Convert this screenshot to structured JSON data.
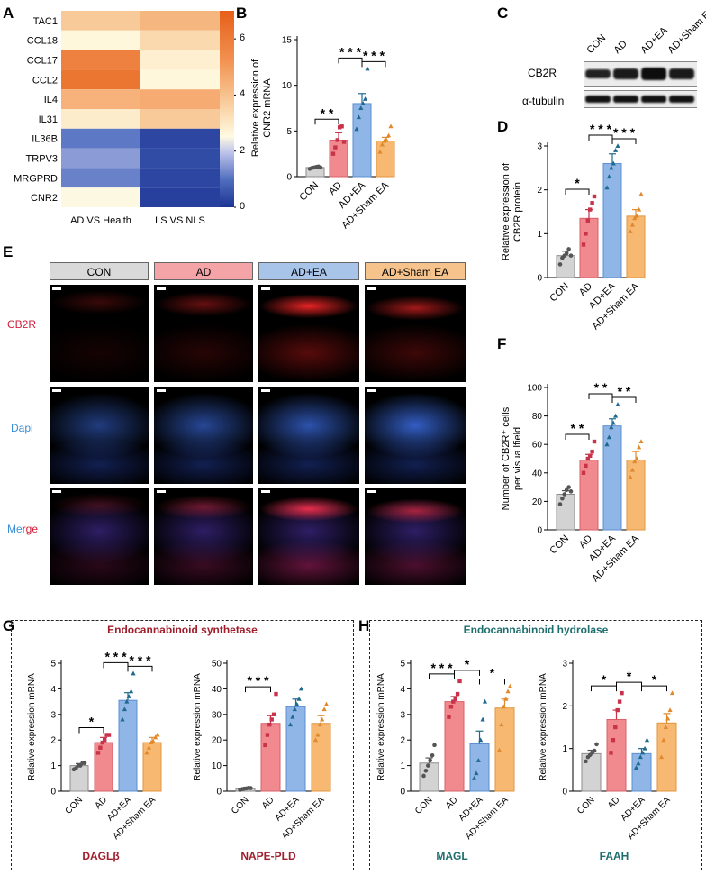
{
  "panels": {
    "a": "A",
    "b": "B",
    "c": "C",
    "d": "D",
    "e": "E",
    "f": "F",
    "g": "G",
    "h": "H"
  },
  "colors": {
    "con": "#d3d3d3",
    "ad": "#f08a8f",
    "ea": "#8fb6e6",
    "sham": "#f7b872",
    "con_pt": "#555555",
    "ad_pt": "#c8324a",
    "ea_pt": "#1f6a8e",
    "sham_pt": "#e08a2e",
    "synth_title": "#a01e2c",
    "hydro_title": "#1f6e6e"
  },
  "heatmap": {
    "rows": [
      "TAC1",
      "CCL18",
      "CCL17",
      "CCL2",
      "IL4",
      "IL31",
      "IL36B",
      "TRPV3",
      "MRGPRD",
      "CNR2"
    ],
    "cols": [
      "AD VS Health",
      "LS VS NLS"
    ],
    "values": [
      [
        3.8,
        4.3
      ],
      [
        2.6,
        3.4
      ],
      [
        5.8,
        2.8
      ],
      [
        6.2,
        2.6
      ],
      [
        4.4,
        4.6
      ],
      [
        2.9,
        3.8
      ],
      [
        1.1,
        0.3
      ],
      [
        1.5,
        0.4
      ],
      [
        1.2,
        0.3
      ],
      [
        2.5,
        0.2
      ]
    ],
    "colorbar_ticks": [
      "6",
      "4",
      "2",
      "0"
    ],
    "range": [
      0,
      7
    ]
  },
  "blot": {
    "lanes": [
      "CON",
      "AD",
      "AD+EA",
      "AD+Sham EA"
    ],
    "rows": [
      "CB2R",
      "α-tubulin"
    ]
  },
  "panel_e": {
    "headers": [
      "CON",
      "AD",
      "AD+EA",
      "AD+Sham EA"
    ],
    "row_labels": [
      "CB2R",
      "Dapi",
      "Merge"
    ],
    "merge_word_a": "Me",
    "merge_word_b": "rge"
  },
  "groups": {
    "synth_title": "Endocannabinoid synthetase",
    "hydro_title": "Endocannabinoid hydrolase"
  },
  "chart_data": [
    {
      "id": "B",
      "type": "bar",
      "categories": [
        "CON",
        "AD",
        "AD+EA",
        "AD+Sham EA"
      ],
      "values": [
        1.0,
        4.0,
        8.0,
        3.9
      ],
      "errors": [
        0.1,
        0.8,
        1.1,
        0.4
      ],
      "ylabel": [
        "Relative expression of",
        "CNR2 mRNA"
      ],
      "ylim": [
        0,
        15
      ],
      "yticks": [
        0,
        5,
        10,
        15
      ],
      "points": [
        [
          0.85,
          0.95,
          1.0,
          1.05,
          1.1,
          1.0
        ],
        [
          2.5,
          3.2,
          4.0,
          5.4,
          5.5,
          3.8
        ],
        [
          5.2,
          6.5,
          7.5,
          8.0,
          8.5,
          11.8
        ],
        [
          2.7,
          3.5,
          3.9,
          4.0,
          4.5,
          5.5
        ]
      ],
      "sig": [
        {
          "a": 0,
          "b": 1,
          "label": "* *"
        },
        {
          "a": 1,
          "b": 2,
          "label": "* * *"
        },
        {
          "a": 2,
          "b": 3,
          "label": "* * *"
        }
      ]
    },
    {
      "id": "D",
      "type": "bar",
      "categories": [
        "CON",
        "AD",
        "AD+EA",
        "AD+Sham EA"
      ],
      "values": [
        0.5,
        1.35,
        2.6,
        1.4
      ],
      "errors": [
        0.1,
        0.2,
        0.22,
        0.15
      ],
      "ylabel": [
        "Relative expression of",
        "CB2R  protein"
      ],
      "ylim": [
        0,
        3
      ],
      "yticks": [
        0,
        1,
        2,
        3
      ],
      "points": [
        [
          0.3,
          0.45,
          0.5,
          0.55,
          0.65,
          0.5
        ],
        [
          0.75,
          1.0,
          1.3,
          1.55,
          1.7,
          1.85
        ],
        [
          2.05,
          2.3,
          2.5,
          2.6,
          2.9,
          3.45
        ],
        [
          1.05,
          1.2,
          1.35,
          1.4,
          1.55,
          1.9
        ]
      ],
      "sig": [
        {
          "a": 0,
          "b": 1,
          "label": "*"
        },
        {
          "a": 1,
          "b": 2,
          "label": "* * *"
        },
        {
          "a": 2,
          "b": 3,
          "label": "* * *"
        }
      ]
    },
    {
      "id": "F",
      "type": "bar",
      "categories": [
        "CON",
        "AD",
        "AD+EA",
        "AD+Sham EA"
      ],
      "values": [
        25,
        49,
        73,
        49
      ],
      "errors": [
        2.5,
        4,
        5,
        6
      ],
      "ylabel": [
        "Number of CB2R⁺ cells",
        "per visua lfield"
      ],
      "ylim": [
        0,
        100
      ],
      "yticks": [
        0,
        20,
        40,
        60,
        80,
        100
      ],
      "points": [
        [
          18,
          22,
          25,
          28,
          30,
          27
        ],
        [
          40,
          45,
          50,
          52,
          55,
          62
        ],
        [
          60,
          65,
          72,
          75,
          80,
          88
        ],
        [
          37,
          42,
          48,
          50,
          58,
          62
        ]
      ],
      "sig": [
        {
          "a": 0,
          "b": 1,
          "label": "* *"
        },
        {
          "a": 1,
          "b": 2,
          "label": "* *"
        },
        {
          "a": 2,
          "b": 3,
          "label": "* *"
        }
      ]
    },
    {
      "id": "G1",
      "type": "bar",
      "name": "DAGLβ",
      "categories": [
        "CON",
        "AD",
        "AD+EA",
        "AD+Sham EA"
      ],
      "values": [
        1.0,
        1.9,
        3.55,
        1.9
      ],
      "errors": [
        0.08,
        0.2,
        0.3,
        0.2
      ],
      "ylabel": [
        "Relative expression mRNA"
      ],
      "ylim": [
        0,
        5
      ],
      "yticks": [
        0,
        1,
        2,
        3,
        4,
        5
      ],
      "points": [
        [
          0.85,
          0.9,
          1.0,
          1.0,
          1.1,
          1.1
        ],
        [
          1.5,
          1.7,
          1.9,
          2.0,
          2.2,
          2.2
        ],
        [
          2.8,
          3.2,
          3.5,
          3.7,
          3.9,
          4.6
        ],
        [
          1.5,
          1.7,
          1.9,
          1.95,
          2.1,
          2.2
        ]
      ],
      "sig": [
        {
          "a": 0,
          "b": 1,
          "label": "*"
        },
        {
          "a": 1,
          "b": 2,
          "label": "* * *"
        },
        {
          "a": 2,
          "b": 3,
          "label": "* * *"
        }
      ]
    },
    {
      "id": "G2",
      "type": "bar",
      "name": "NAPE-PLD",
      "categories": [
        "CON",
        "AD",
        "AD+EA",
        "AD+Sham EA"
      ],
      "values": [
        1.0,
        26.5,
        33,
        26.5
      ],
      "errors": [
        0.3,
        3,
        3,
        3
      ],
      "ylabel": [
        "Relative expression mRNA"
      ],
      "ylim": [
        0,
        50
      ],
      "yticks": [
        0,
        10,
        20,
        30,
        40,
        50
      ],
      "points": [
        [
          0.5,
          0.8,
          1.0,
          1.1,
          1.3,
          1.2
        ],
        [
          18,
          22,
          26,
          28,
          30,
          38
        ],
        [
          26,
          29,
          32,
          34,
          36,
          40
        ],
        [
          20,
          22,
          26,
          28,
          32,
          34
        ]
      ],
      "sig": [
        {
          "a": 0,
          "b": 1,
          "label": "* * *"
        }
      ]
    },
    {
      "id": "H1",
      "type": "bar",
      "name": "MAGL",
      "categories": [
        "CON",
        "AD",
        "AD+EA",
        "AD+Sham EA"
      ],
      "values": [
        1.1,
        3.5,
        1.85,
        3.25
      ],
      "errors": [
        0.2,
        0.2,
        0.5,
        0.35
      ],
      "ylabel": [
        "Relative expression mRNA"
      ],
      "ylim": [
        0,
        5
      ],
      "yticks": [
        0,
        1,
        2,
        3,
        4,
        5
      ],
      "points": [
        [
          0.6,
          0.8,
          1.0,
          1.2,
          1.4,
          1.8
        ],
        [
          2.9,
          3.3,
          3.5,
          3.6,
          3.8,
          4.3
        ],
        [
          0.5,
          0.7,
          1.2,
          2.0,
          2.8,
          3.5
        ],
        [
          1.6,
          2.6,
          3.3,
          3.6,
          3.9,
          4.1
        ]
      ],
      "sig": [
        {
          "a": 0,
          "b": 1,
          "label": "* * *"
        },
        {
          "a": 1,
          "b": 2,
          "label": "*"
        },
        {
          "a": 2,
          "b": 3,
          "label": "*"
        }
      ]
    },
    {
      "id": "H2",
      "type": "bar",
      "name": "FAAH",
      "categories": [
        "CON",
        "AD",
        "AD+EA",
        "AD+Sham EA"
      ],
      "values": [
        0.88,
        1.68,
        0.88,
        1.6
      ],
      "errors": [
        0.08,
        0.22,
        0.12,
        0.22
      ],
      "ylabel": [
        "Relative expression mRNA"
      ],
      "ylim": [
        0,
        3
      ],
      "yticks": [
        0,
        1,
        2,
        3
      ],
      "points": [
        [
          0.7,
          0.8,
          0.85,
          0.9,
          0.95,
          1.1
        ],
        [
          0.9,
          1.2,
          1.5,
          1.9,
          2.1,
          2.3
        ],
        [
          0.55,
          0.65,
          0.8,
          0.9,
          1.0,
          1.2
        ],
        [
          0.8,
          1.2,
          1.5,
          1.7,
          1.9,
          2.3
        ]
      ],
      "sig": [
        {
          "a": 0,
          "b": 1,
          "label": "*"
        },
        {
          "a": 1,
          "b": 2,
          "label": "*"
        },
        {
          "a": 2,
          "b": 3,
          "label": "*"
        }
      ]
    }
  ]
}
